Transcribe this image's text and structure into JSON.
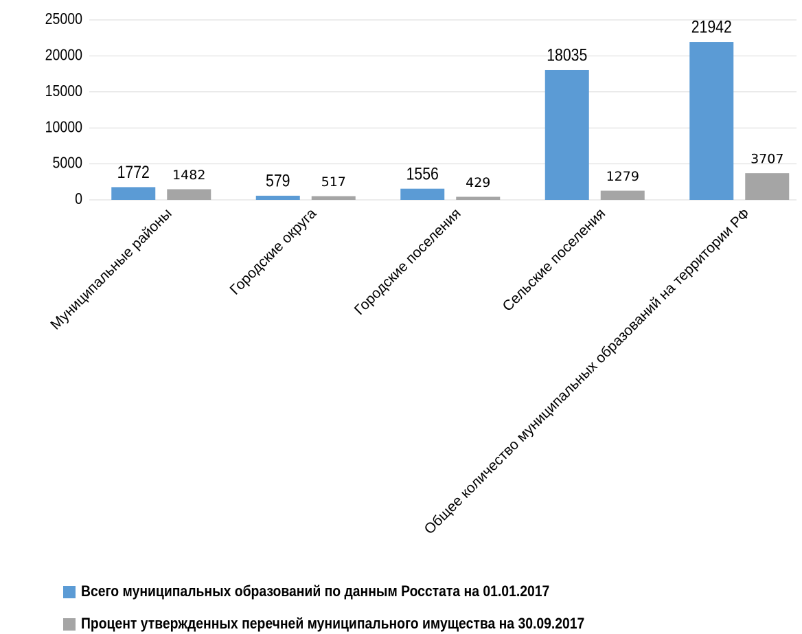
{
  "chart_data": {
    "type": "bar",
    "categories": [
      "Муниципальные районы",
      "Городские округа",
      "Городские поселения",
      "Сельские поселения",
      "Общее количество муниципальных образований на территории РФ"
    ],
    "series": [
      {
        "name": "Всего муниципальных образований по данным Росстата на 01.01.2017",
        "color": "#5b9bd5",
        "values": [
          1772,
          579,
          1556,
          18035,
          21942
        ]
      },
      {
        "name": "Процент утвержденных перечней муниципального имущества на 30.09.2017",
        "color": "#a5a5a5",
        "values": [
          1482,
          517,
          429,
          1279,
          3707
        ]
      }
    ],
    "ylim": [
      0,
      25000
    ],
    "yticks": [
      0,
      5000,
      10000,
      15000,
      20000,
      25000
    ],
    "grid": true,
    "legend": "bottom"
  }
}
